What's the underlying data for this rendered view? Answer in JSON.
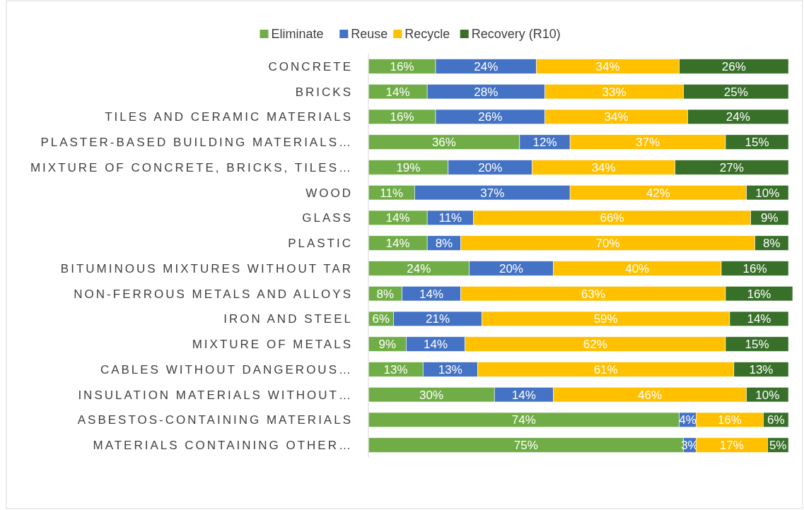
{
  "chart_data": {
    "type": "bar",
    "orientation": "horizontal",
    "stacked": true,
    "legend": "top",
    "categories": [
      "CONCRETE",
      "BRICKS",
      "TILES AND CERAMIC MATERIALS",
      "PLASTER-BASED BUILDING MATERIALS…",
      "MIXTURE OF CONCRETE, BRICKS, TILES…",
      "WOOD",
      "GLASS",
      "PLASTIC",
      "BITUMINOUS MIXTURES WITHOUT TAR",
      "NON-FERROUS METALS AND ALLOYS",
      "IRON AND STEEL",
      "MIXTURE OF METALS",
      "CABLES WITHOUT DANGEROUS…",
      "INSULATION MATERIALS WITHOUT…",
      "ASBESTOS-CONTAINING MATERIALS",
      "MATERIALS CONTAINING OTHER…"
    ],
    "series": [
      {
        "name": "Eliminate",
        "color": "#70ad47",
        "values": [
          16,
          14,
          16,
          36,
          19,
          11,
          14,
          14,
          24,
          8,
          6,
          9,
          13,
          30,
          74,
          75
        ],
        "value_labels": [
          "16%",
          "14%",
          "16%",
          "36%",
          "19%",
          "11%",
          "14%",
          "14%",
          "24%",
          "8%",
          "6%",
          "9%",
          "13%",
          "30%",
          "74%",
          "75%"
        ]
      },
      {
        "name": "Reuse",
        "color": "#4472c4",
        "values": [
          24,
          28,
          26,
          12,
          20,
          37,
          11,
          8,
          20,
          14,
          21,
          14,
          13,
          14,
          4,
          3
        ],
        "value_labels": [
          "24%",
          "28%",
          "26%",
          "12%",
          "20%",
          "37%",
          "11%",
          "8%",
          "20%",
          "14%",
          "21%",
          "14%",
          "13%",
          "14%",
          "4%",
          "3%"
        ]
      },
      {
        "name": "Recycle",
        "color": "#ffc000",
        "values": [
          34,
          33,
          34,
          37,
          34,
          42,
          66,
          70,
          40,
          63,
          59,
          62,
          61,
          46,
          16,
          17
        ],
        "value_labels": [
          "34%",
          "33%",
          "34%",
          "37%",
          "34%",
          "42%",
          "66%",
          "70%",
          "40%",
          "63%",
          "59%",
          "62%",
          "61%",
          "46%",
          "16%",
          "17%"
        ]
      },
      {
        "name": "Recovery (R10)",
        "color": "#38702a",
        "values": [
          26,
          25,
          24,
          15,
          27,
          10,
          9,
          8,
          16,
          16,
          14,
          15,
          13,
          10,
          6,
          5
        ],
        "value_labels": [
          "26%",
          "25%",
          "24%",
          "15%",
          "27%",
          "10%",
          "9%",
          "8%",
          "16%",
          "16%",
          "14%",
          "15%",
          "13%",
          "10%",
          "6%",
          "5%"
        ]
      }
    ]
  }
}
